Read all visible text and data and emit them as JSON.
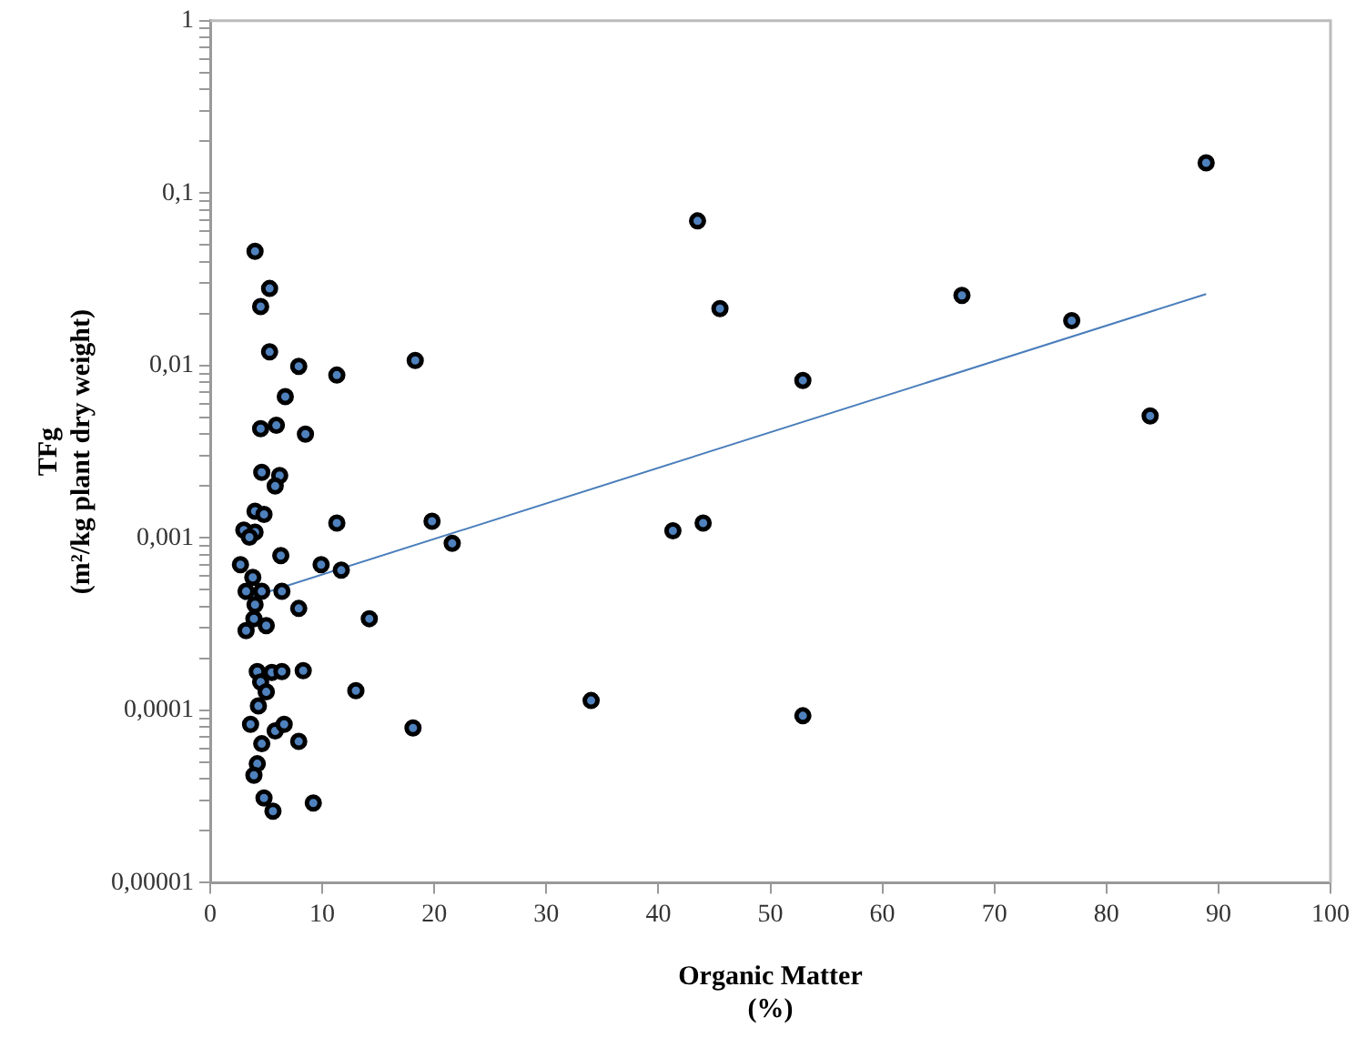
{
  "chart_data": {
    "type": "scatter",
    "xlabel": "Organic Matter\n(%)",
    "ylabel": "TFg\n(m²/kg plant dry weight)",
    "log": "y",
    "grid": false,
    "legend": false,
    "marker": "circle",
    "xlim": [
      0,
      100
    ],
    "xticks": [
      0,
      10,
      20,
      30,
      40,
      50,
      60,
      70,
      80,
      90,
      100
    ],
    "ylim": [
      1e-05,
      1
    ],
    "yticks": [
      {
        "value": 1e-05,
        "label": "0,00001"
      },
      {
        "value": 2e-05,
        "label": null
      },
      {
        "value": 3e-05,
        "label": null
      },
      {
        "value": 4e-05,
        "label": null
      },
      {
        "value": 5e-05,
        "label": null
      },
      {
        "value": 6e-05,
        "label": null
      },
      {
        "value": 7e-05,
        "label": null
      },
      {
        "value": 8e-05,
        "label": null
      },
      {
        "value": 9e-05,
        "label": null
      },
      {
        "value": 0.0001,
        "label": "0,0001"
      },
      {
        "value": 0.0002,
        "label": null
      },
      {
        "value": 0.0003,
        "label": null
      },
      {
        "value": 0.0004,
        "label": null
      },
      {
        "value": 0.0005,
        "label": null
      },
      {
        "value": 0.0006,
        "label": null
      },
      {
        "value": 0.0007,
        "label": null
      },
      {
        "value": 0.0008,
        "label": null
      },
      {
        "value": 0.0009,
        "label": null
      },
      {
        "value": 0.001,
        "label": "0,001"
      },
      {
        "value": 0.002,
        "label": null
      },
      {
        "value": 0.003,
        "label": null
      },
      {
        "value": 0.004,
        "label": null
      },
      {
        "value": 0.005,
        "label": null
      },
      {
        "value": 0.006,
        "label": null
      },
      {
        "value": 0.007,
        "label": null
      },
      {
        "value": 0.008,
        "label": null
      },
      {
        "value": 0.009,
        "label": null
      },
      {
        "value": 0.01,
        "label": "0,01"
      },
      {
        "value": 0.02,
        "label": null
      },
      {
        "value": 0.03,
        "label": null
      },
      {
        "value": 0.04,
        "label": null
      },
      {
        "value": 0.05,
        "label": null
      },
      {
        "value": 0.06,
        "label": null
      },
      {
        "value": 0.07,
        "label": null
      },
      {
        "value": 0.08,
        "label": null
      },
      {
        "value": 0.09,
        "label": null
      },
      {
        "value": 0.1,
        "label": "0,1"
      },
      {
        "value": 0.2,
        "label": null
      },
      {
        "value": 0.3,
        "label": null
      },
      {
        "value": 0.4,
        "label": null
      },
      {
        "value": 0.5,
        "label": null
      },
      {
        "value": 0.6,
        "label": null
      },
      {
        "value": 0.7,
        "label": null
      },
      {
        "value": 0.8,
        "label": null
      },
      {
        "value": 0.9,
        "label": null
      },
      {
        "value": 1,
        "label": "1"
      }
    ],
    "series": [
      {
        "color": "#000000",
        "x": [
          4.0,
          43.5,
          18.3,
          45.5,
          67.1,
          76.9,
          52.9,
          83.9,
          88.9,
          19.8,
          21.6,
          41.3,
          44.0,
          14.2,
          34.0,
          18.1,
          52.9,
          5.3,
          4.5,
          5.3,
          7.9,
          11.3,
          6.7,
          4.5,
          5.9,
          8.5,
          4.6,
          6.2,
          5.8,
          4.0,
          4.8,
          3.0,
          4.0,
          3.5,
          11.3,
          6.3,
          2.7,
          9.9,
          11.7,
          3.8,
          3.2,
          4.6,
          6.4,
          4.0,
          7.9,
          3.9,
          3.2,
          5.0,
          4.2,
          5.5,
          6.4,
          8.3,
          4.5,
          5.0,
          13.0,
          4.3,
          3.6,
          5.8,
          6.6,
          4.6,
          7.9,
          4.2,
          3.9,
          4.8,
          5.6,
          9.2
        ],
        "values": [
          0.046,
          0.069,
          0.0107,
          0.0214,
          0.0255,
          0.0182,
          0.0082,
          0.0051,
          0.15,
          0.00125,
          0.00093,
          0.0011,
          0.00122,
          0.00034,
          0.000114,
          7.9e-05,
          9.3e-05,
          0.028,
          0.022,
          0.012,
          0.0099,
          0.0088,
          0.0066,
          0.0043,
          0.0045,
          0.004,
          0.0024,
          0.0023,
          0.002,
          0.00143,
          0.00137,
          0.00111,
          0.00108,
          0.00101,
          0.00122,
          0.00079,
          0.0007,
          0.0007,
          0.00065,
          0.00059,
          0.00049,
          0.00049,
          0.00049,
          0.00041,
          0.00039,
          0.00034,
          0.00029,
          0.00031,
          0.000168,
          0.000166,
          0.000168,
          0.00017,
          0.000146,
          0.000128,
          0.00013,
          0.000106,
          8.3e-05,
          7.6e-05,
          8.3e-05,
          6.4e-05,
          6.6e-05,
          4.9e-05,
          4.2e-05,
          3.1e-05,
          2.6e-05,
          2.9e-05
        ]
      },
      {
        "type": "line",
        "color": "#4a7ebb",
        "marker": "none",
        "x": [
          3,
          88.9
        ],
        "values": [
          0.00044,
          0.026
        ]
      }
    ]
  }
}
